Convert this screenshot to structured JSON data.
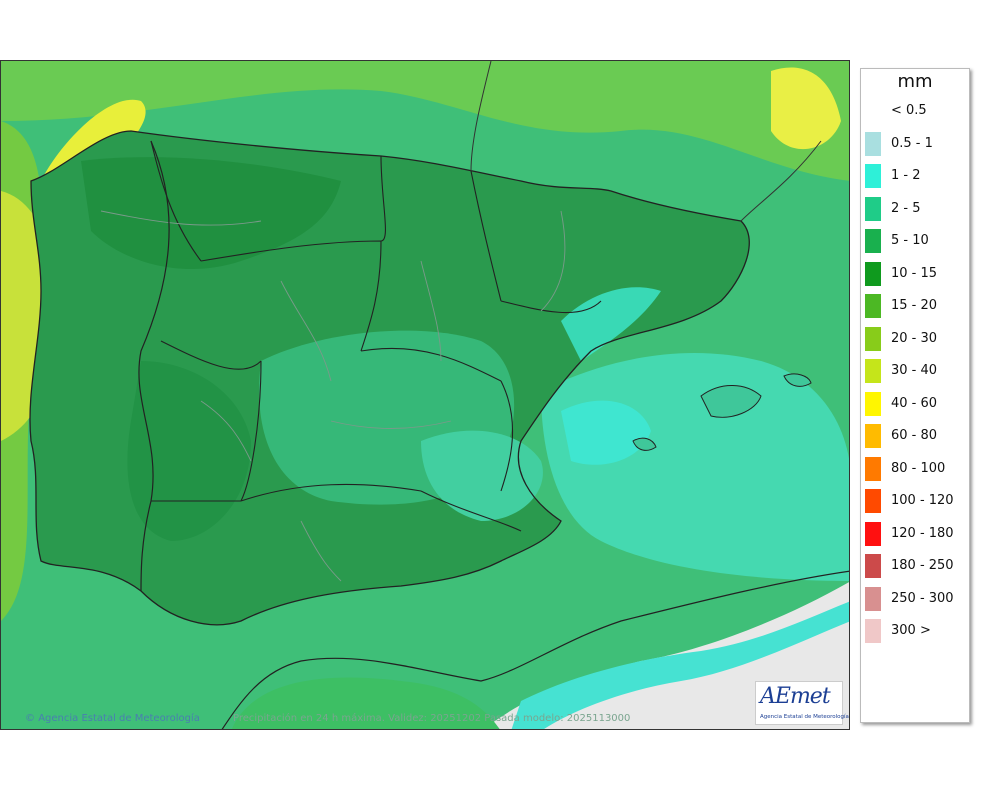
{
  "legend": {
    "unit": "mm",
    "items": [
      {
        "label": "< 0.5",
        "color": ""
      },
      {
        "label": "0.5 - 1",
        "color": "#a9dfe0"
      },
      {
        "label": "1 - 2",
        "color": "#2ef0d8"
      },
      {
        "label": "2 - 5",
        "color": "#1fcc88"
      },
      {
        "label": "5 - 10",
        "color": "#19b04e"
      },
      {
        "label": "10 - 15",
        "color": "#0f9a1e"
      },
      {
        "label": "15 - 20",
        "color": "#4cb824"
      },
      {
        "label": "20 - 30",
        "color": "#88cc1a"
      },
      {
        "label": "30 - 40",
        "color": "#c5e51a"
      },
      {
        "label": "40 - 60",
        "color": "#fff600"
      },
      {
        "label": "60 - 80",
        "color": "#ffbb00"
      },
      {
        "label": "80 - 100",
        "color": "#ff7a00"
      },
      {
        "label": "100 - 120",
        "color": "#ff4a00"
      },
      {
        "label": "120 - 180",
        "color": "#ff1010"
      },
      {
        "label": "180 - 250",
        "color": "#cc4a4a"
      },
      {
        "label": "250 - 300",
        "color": "#d89090"
      },
      {
        "label": "300 >",
        "color": "#f0c8c8"
      }
    ]
  },
  "footer": {
    "credit": "Agencia Estatal de Meteorología",
    "caption": "Precipitación en 24 h máxima. Validez: 20251202 Pasada modelo: 2025113000"
  },
  "logo": {
    "text": "AEmet",
    "subtitle": "Agencia Estatal de Meteorología"
  },
  "map": {
    "sea_color": "#3fbf78",
    "land_color": "#2a9a4e",
    "africa_color": "#e8e8e8"
  }
}
